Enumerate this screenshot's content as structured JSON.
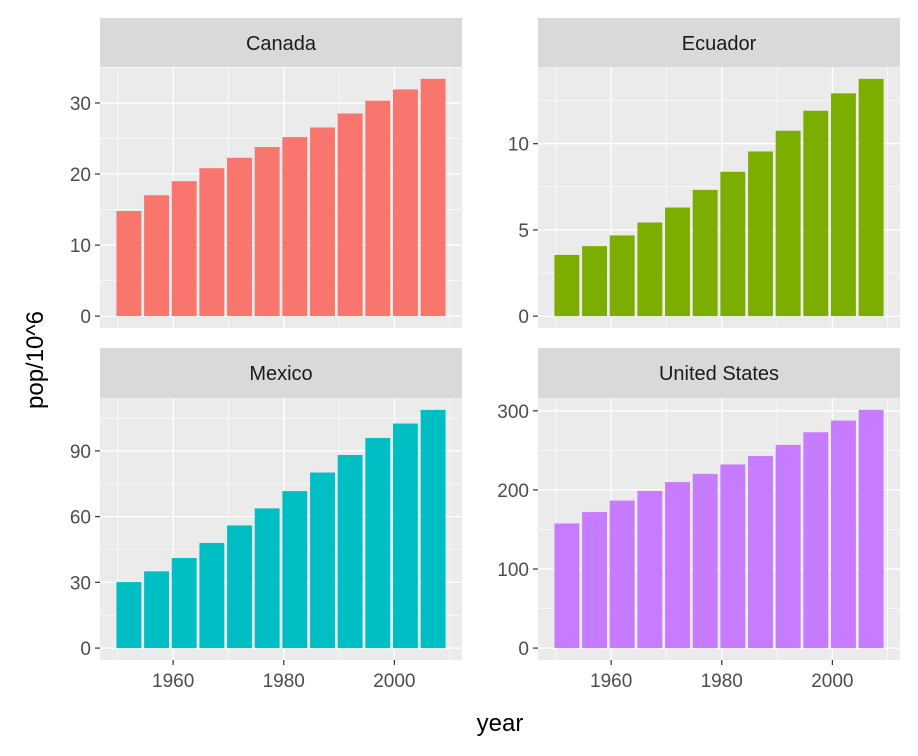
{
  "chart_data": {
    "type": "bar",
    "xlabel": "year",
    "ylabel": "pop/10^6",
    "x": [
      1952,
      1957,
      1962,
      1967,
      1972,
      1977,
      1982,
      1987,
      1992,
      1997,
      2002,
      2007
    ],
    "x_ticks": [
      1960,
      1980,
      2000
    ],
    "facets": [
      {
        "name": "Canada",
        "color": "#F8766D",
        "y_ticks": [
          0,
          10,
          20,
          30
        ],
        "values": [
          14.79,
          17.01,
          18.99,
          20.82,
          22.28,
          23.8,
          25.2,
          26.55,
          28.52,
          30.31,
          31.9,
          33.39
        ]
      },
      {
        "name": "Ecuador",
        "color": "#7CAE00",
        "y_ticks": [
          0,
          5,
          10
        ],
        "values": [
          3.55,
          4.06,
          4.68,
          5.43,
          6.3,
          7.32,
          8.37,
          9.55,
          10.75,
          11.91,
          12.92,
          13.76
        ]
      },
      {
        "name": "Mexico",
        "color": "#00BFC4",
        "y_ticks": [
          0,
          30,
          60,
          90
        ],
        "values": [
          30.14,
          35.02,
          41.12,
          47.99,
          55.98,
          63.76,
          71.64,
          80.12,
          88.11,
          95.9,
          102.48,
          108.7
        ]
      },
      {
        "name": "United States",
        "color": "#C77CFF",
        "y_ticks": [
          0,
          100,
          200,
          300
        ],
        "values": [
          157.55,
          171.98,
          186.54,
          198.71,
          209.9,
          220.24,
          232.19,
          242.8,
          256.89,
          272.91,
          287.68,
          301.14
        ]
      }
    ]
  }
}
